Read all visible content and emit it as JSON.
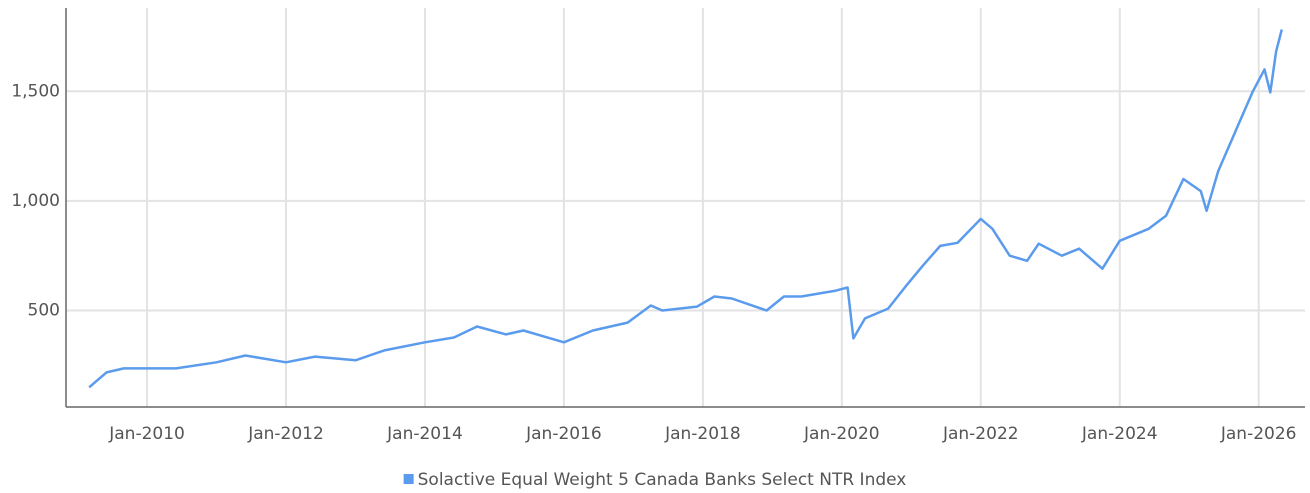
{
  "chart_data": {
    "type": "line",
    "x": [
      "2009-03",
      "2009-06",
      "2009-09",
      "2010-01",
      "2010-06",
      "2011-01",
      "2011-06",
      "2012-01",
      "2012-06",
      "2013-01",
      "2013-06",
      "2014-01",
      "2014-06",
      "2014-10",
      "2015-03",
      "2015-06",
      "2016-01",
      "2016-06",
      "2016-12",
      "2017-04",
      "2017-06",
      "2017-12",
      "2018-03",
      "2018-06",
      "2018-12",
      "2019-03",
      "2019-06",
      "2019-12",
      "2020-02",
      "2020-03",
      "2020-05",
      "2020-09",
      "2020-12",
      "2021-03",
      "2021-06",
      "2021-09",
      "2022-01",
      "2022-03",
      "2022-06",
      "2022-09",
      "2022-11",
      "2023-03",
      "2023-06",
      "2023-10",
      "2024-01",
      "2024-06",
      "2024-09",
      "2024-12",
      "2025-03",
      "2025-04",
      "2025-06",
      "2025-09",
      "2025-12",
      "2026-02",
      "2026-03",
      "2026-04",
      "2026-05"
    ],
    "series": [
      {
        "name": "Solactive Equal Weight 5 Canada Banks Select NTR Index",
        "color": "#5b9bed",
        "values": [
          150,
          218,
          236,
          236,
          236,
          264,
          295,
          264,
          290,
          273,
          318,
          355,
          377,
          427,
          391,
          409,
          355,
          409,
          445,
          523,
          500,
          518,
          564,
          555,
          500,
          564,
          564,
          591,
          605,
          373,
          464,
          509,
          609,
          705,
          795,
          809,
          918,
          873,
          750,
          727,
          805,
          750,
          782,
          691,
          818,
          873,
          932,
          1100,
          1045,
          955,
          1136,
          1318,
          1500,
          1600,
          1495,
          1682,
          1782
        ]
      }
    ],
    "xlim": [
      "2008-11",
      "2026-09"
    ],
    "xticks": [
      {
        "value": "2010-01",
        "label": "Jan-2010"
      },
      {
        "value": "2012-01",
        "label": "Jan-2012"
      },
      {
        "value": "2014-01",
        "label": "Jan-2014"
      },
      {
        "value": "2016-01",
        "label": "Jan-2016"
      },
      {
        "value": "2018-01",
        "label": "Jan-2018"
      },
      {
        "value": "2020-01",
        "label": "Jan-2020"
      },
      {
        "value": "2022-01",
        "label": "Jan-2022"
      },
      {
        "value": "2024-01",
        "label": "Jan-2024"
      },
      {
        "value": "2026-01",
        "label": "Jan-2026"
      }
    ],
    "ylim": [
      60,
      1880
    ],
    "yticks": [
      500,
      {
        "value": 1000,
        "label": "1,000"
      },
      {
        "value": 1500,
        "label": "1,500"
      }
    ],
    "grid": true,
    "legend": "bottom"
  }
}
